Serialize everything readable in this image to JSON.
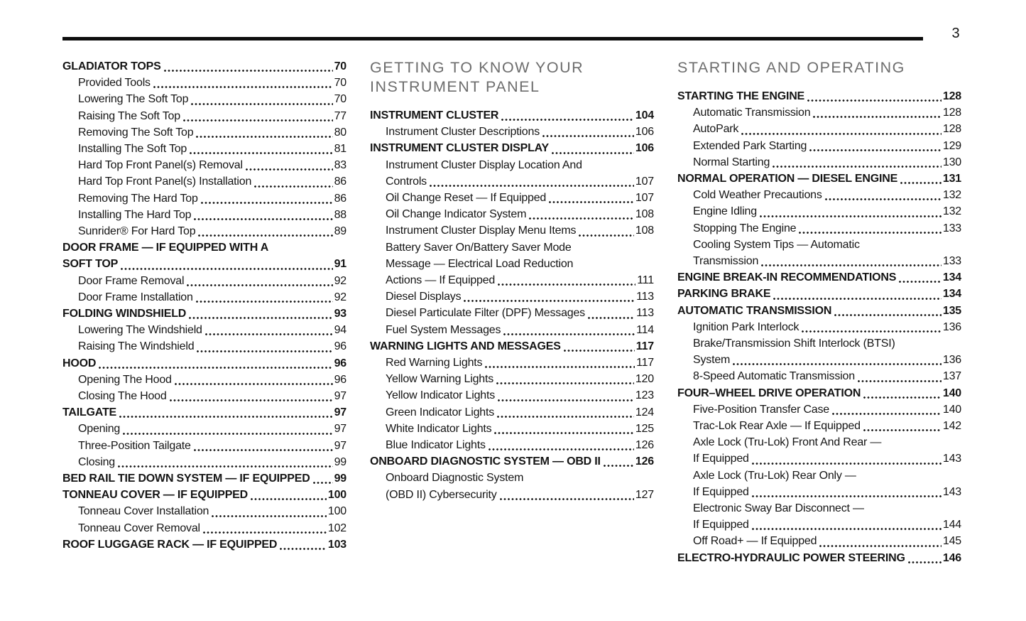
{
  "page_number": "3",
  "colors": {
    "text": "#151515",
    "header_gray": "#6d6d6d",
    "rule": "#0e0e0e"
  },
  "columns": [
    {
      "header": "",
      "entries": [
        {
          "label": "GLADIATOR TOPS",
          "page": "70",
          "bold": true,
          "indent": 0
        },
        {
          "label": "Provided Tools",
          "page": "70",
          "bold": false,
          "indent": 1
        },
        {
          "label": "Lowering The Soft Top",
          "page": "70",
          "bold": false,
          "indent": 1
        },
        {
          "label": "Raising The Soft Top",
          "page": "77",
          "bold": false,
          "indent": 1
        },
        {
          "label": "Removing The Soft Top",
          "page": "80",
          "bold": false,
          "indent": 1
        },
        {
          "label": "Installing The Soft Top",
          "page": "81",
          "bold": false,
          "indent": 1
        },
        {
          "label": "Hard Top Front Panel(s) Removal",
          "page": "83",
          "bold": false,
          "indent": 1
        },
        {
          "label": "Hard Top Front Panel(s) Installation",
          "page": "86",
          "bold": false,
          "indent": 1
        },
        {
          "label": "Removing The Hard Top",
          "page": "86",
          "bold": false,
          "indent": 1
        },
        {
          "label": "Installing The Hard Top",
          "page": "88",
          "bold": false,
          "indent": 1
        },
        {
          "label": "Sunrider® For Hard Top",
          "page": "89",
          "bold": false,
          "indent": 1
        },
        {
          "label": "DOOR FRAME — IF EQUIPPED WITH A",
          "page": null,
          "bold": true,
          "indent": 0
        },
        {
          "label": "SOFT TOP",
          "page": "91",
          "bold": true,
          "indent": 0
        },
        {
          "label": "Door Frame Removal",
          "page": "92",
          "bold": false,
          "indent": 1
        },
        {
          "label": "Door Frame Installation",
          "page": "92",
          "bold": false,
          "indent": 1
        },
        {
          "label": "FOLDING WINDSHIELD",
          "page": "93",
          "bold": true,
          "indent": 0
        },
        {
          "label": "Lowering The Windshield",
          "page": "94",
          "bold": false,
          "indent": 1
        },
        {
          "label": "Raising The Windshield",
          "page": "96",
          "bold": false,
          "indent": 1
        },
        {
          "label": "HOOD",
          "page": "96",
          "bold": true,
          "indent": 0
        },
        {
          "label": "Opening The Hood",
          "page": "96",
          "bold": false,
          "indent": 1
        },
        {
          "label": "Closing The Hood",
          "page": "97",
          "bold": false,
          "indent": 1
        },
        {
          "label": "TAILGATE",
          "page": "97",
          "bold": true,
          "indent": 0
        },
        {
          "label": "Opening",
          "page": "97",
          "bold": false,
          "indent": 1
        },
        {
          "label": "Three-Position Tailgate",
          "page": "97",
          "bold": false,
          "indent": 1
        },
        {
          "label": "Closing",
          "page": "99",
          "bold": false,
          "indent": 1
        },
        {
          "label": "BED RAIL TIE DOWN SYSTEM — IF EQUIPPED",
          "page": "99",
          "bold": true,
          "indent": 0
        },
        {
          "label": "TONNEAU COVER — IF EQUIPPED",
          "page": "100",
          "bold": true,
          "indent": 0
        },
        {
          "label": "Tonneau Cover Installation",
          "page": "100",
          "bold": false,
          "indent": 1
        },
        {
          "label": "Tonneau Cover Removal",
          "page": "102",
          "bold": false,
          "indent": 1
        },
        {
          "label": "ROOF LUGGAGE RACK — IF EQUIPPED",
          "page": "103",
          "bold": true,
          "indent": 0
        }
      ]
    },
    {
      "header": "GETTING TO KNOW YOUR INSTRUMENT PANEL",
      "entries": [
        {
          "label": "INSTRUMENT CLUSTER",
          "page": "104",
          "bold": true,
          "indent": 0
        },
        {
          "label": "Instrument Cluster Descriptions",
          "page": "106",
          "bold": false,
          "indent": 1
        },
        {
          "label": "INSTRUMENT CLUSTER DISPLAY",
          "page": "106",
          "bold": true,
          "indent": 0
        },
        {
          "label": "Instrument Cluster Display Location And",
          "page": null,
          "bold": false,
          "indent": 1
        },
        {
          "label": "Controls",
          "page": "107",
          "bold": false,
          "indent": 1
        },
        {
          "label": "Oil Change Reset — If Equipped",
          "page": "107",
          "bold": false,
          "indent": 1
        },
        {
          "label": "Oil Change Indicator System",
          "page": "108",
          "bold": false,
          "indent": 1
        },
        {
          "label": "Instrument Cluster Display Menu Items",
          "page": "108",
          "bold": false,
          "indent": 1
        },
        {
          "label": "Battery Saver On/Battery Saver Mode",
          "page": null,
          "bold": false,
          "indent": 1
        },
        {
          "label": "Message — Electrical Load Reduction",
          "page": null,
          "bold": false,
          "indent": 1
        },
        {
          "label": "Actions — If Equipped",
          "page": "111",
          "bold": false,
          "indent": 1
        },
        {
          "label": "Diesel Displays",
          "page": "113",
          "bold": false,
          "indent": 1
        },
        {
          "label": "Diesel Particulate Filter (DPF) Messages",
          "page": "113",
          "bold": false,
          "indent": 1
        },
        {
          "label": "Fuel System Messages",
          "page": "114",
          "bold": false,
          "indent": 1
        },
        {
          "label": "WARNING LIGHTS AND MESSAGES",
          "page": "117",
          "bold": true,
          "indent": 0
        },
        {
          "label": "Red Warning Lights",
          "page": "117",
          "bold": false,
          "indent": 1
        },
        {
          "label": "Yellow Warning Lights",
          "page": "120",
          "bold": false,
          "indent": 1
        },
        {
          "label": "Yellow Indicator Lights",
          "page": "123",
          "bold": false,
          "indent": 1
        },
        {
          "label": "Green Indicator Lights",
          "page": "124",
          "bold": false,
          "indent": 1
        },
        {
          "label": "White Indicator Lights",
          "page": "125",
          "bold": false,
          "indent": 1
        },
        {
          "label": "Blue Indicator Lights",
          "page": "126",
          "bold": false,
          "indent": 1
        },
        {
          "label": "ONBOARD DIAGNOSTIC SYSTEM — OBD II",
          "page": "126",
          "bold": true,
          "indent": 0
        },
        {
          "label": "Onboard Diagnostic System",
          "page": null,
          "bold": false,
          "indent": 1
        },
        {
          "label": "(OBD II) Cybersecurity",
          "page": "127",
          "bold": false,
          "indent": 1
        }
      ]
    },
    {
      "header": "STARTING AND OPERATING",
      "entries": [
        {
          "label": "STARTING THE ENGINE",
          "page": "128",
          "bold": true,
          "indent": 0
        },
        {
          "label": "Automatic Transmission",
          "page": "128",
          "bold": false,
          "indent": 1
        },
        {
          "label": "AutoPark",
          "page": "128",
          "bold": false,
          "indent": 1
        },
        {
          "label": "Extended Park Starting",
          "page": "129",
          "bold": false,
          "indent": 1
        },
        {
          "label": "Normal Starting",
          "page": "130",
          "bold": false,
          "indent": 1
        },
        {
          "label": "NORMAL OPERATION — DIESEL ENGINE",
          "page": "131",
          "bold": true,
          "indent": 0
        },
        {
          "label": "Cold Weather Precautions",
          "page": "132",
          "bold": false,
          "indent": 1
        },
        {
          "label": "Engine Idling",
          "page": "132",
          "bold": false,
          "indent": 1
        },
        {
          "label": "Stopping The Engine",
          "page": "133",
          "bold": false,
          "indent": 1
        },
        {
          "label": "Cooling System Tips — Automatic",
          "page": null,
          "bold": false,
          "indent": 1
        },
        {
          "label": "Transmission",
          "page": "133",
          "bold": false,
          "indent": 1
        },
        {
          "label": "ENGINE BREAK-IN RECOMMENDATIONS",
          "page": "134",
          "bold": true,
          "indent": 0
        },
        {
          "label": "PARKING BRAKE",
          "page": "134",
          "bold": true,
          "indent": 0
        },
        {
          "label": "AUTOMATIC TRANSMISSION",
          "page": "135",
          "bold": true,
          "indent": 0
        },
        {
          "label": "Ignition Park Interlock",
          "page": "136",
          "bold": false,
          "indent": 1
        },
        {
          "label": "Brake/Transmission Shift Interlock (BTSI)",
          "page": null,
          "bold": false,
          "indent": 1
        },
        {
          "label": "System",
          "page": "136",
          "bold": false,
          "indent": 1
        },
        {
          "label": "8-Speed Automatic Transmission",
          "page": "137",
          "bold": false,
          "indent": 1
        },
        {
          "label": "FOUR–WHEEL DRIVE OPERATION",
          "page": "140",
          "bold": true,
          "indent": 0
        },
        {
          "label": "Five-Position Transfer Case",
          "page": "140",
          "bold": false,
          "indent": 1
        },
        {
          "label": "Trac-Lok Rear Axle — If Equipped",
          "page": "142",
          "bold": false,
          "indent": 1
        },
        {
          "label": "Axle Lock (Tru-Lok) Front And Rear —",
          "page": null,
          "bold": false,
          "indent": 1
        },
        {
          "label": "If Equipped",
          "page": "143",
          "bold": false,
          "indent": 1
        },
        {
          "label": "Axle Lock (Tru-Lok) Rear Only —",
          "page": null,
          "bold": false,
          "indent": 1
        },
        {
          "label": "If Equipped",
          "page": "143",
          "bold": false,
          "indent": 1
        },
        {
          "label": "Electronic Sway Bar Disconnect —",
          "page": null,
          "bold": false,
          "indent": 1
        },
        {
          "label": "If Equipped",
          "page": "144",
          "bold": false,
          "indent": 1
        },
        {
          "label": "Off Road+ — If Equipped",
          "page": "145",
          "bold": false,
          "indent": 1
        },
        {
          "label": "ELECTRO-HYDRAULIC POWER STEERING",
          "page": "146",
          "bold": true,
          "indent": 0
        }
      ]
    }
  ]
}
